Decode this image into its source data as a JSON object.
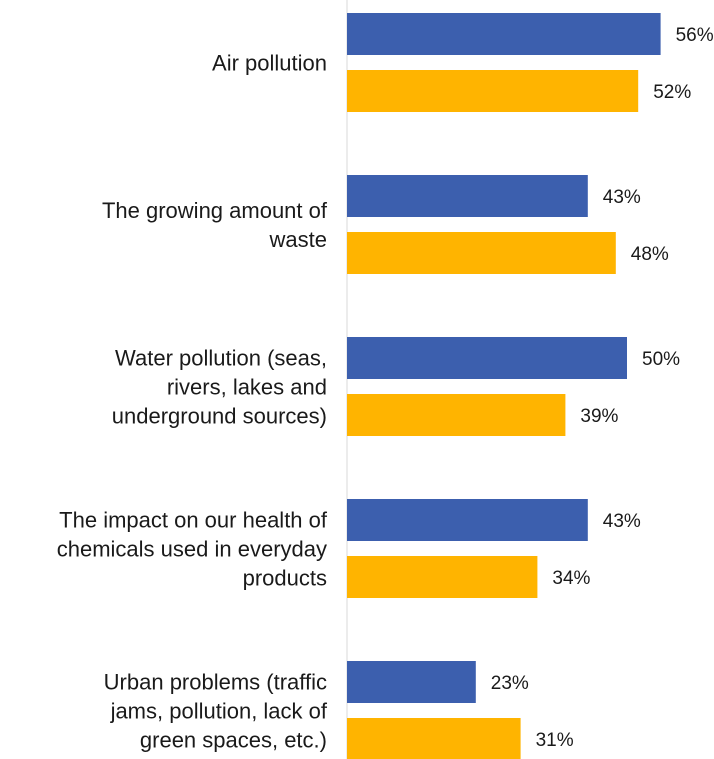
{
  "chart_data": {
    "type": "bar",
    "orientation": "horizontal",
    "categories": [
      [
        "Air pollution"
      ],
      [
        "The growing amount of",
        "waste"
      ],
      [
        "Water pollution (seas,",
        "rivers, lakes and",
        "underground sources)"
      ],
      [
        "The impact on our health of",
        "chemicals used in everyday",
        "products"
      ],
      [
        "Urban problems (traffic",
        "jams, pollution, lack of",
        "green spaces, etc.)"
      ]
    ],
    "series": [
      {
        "color": "#3c5fae",
        "values": [
          56,
          43,
          50,
          43,
          23
        ]
      },
      {
        "color": "#ffb400",
        "values": [
          52,
          48,
          39,
          34,
          31
        ]
      }
    ],
    "value_suffix": "%",
    "xlim": [
      0,
      100
    ],
    "grid": false,
    "legend": "none"
  }
}
